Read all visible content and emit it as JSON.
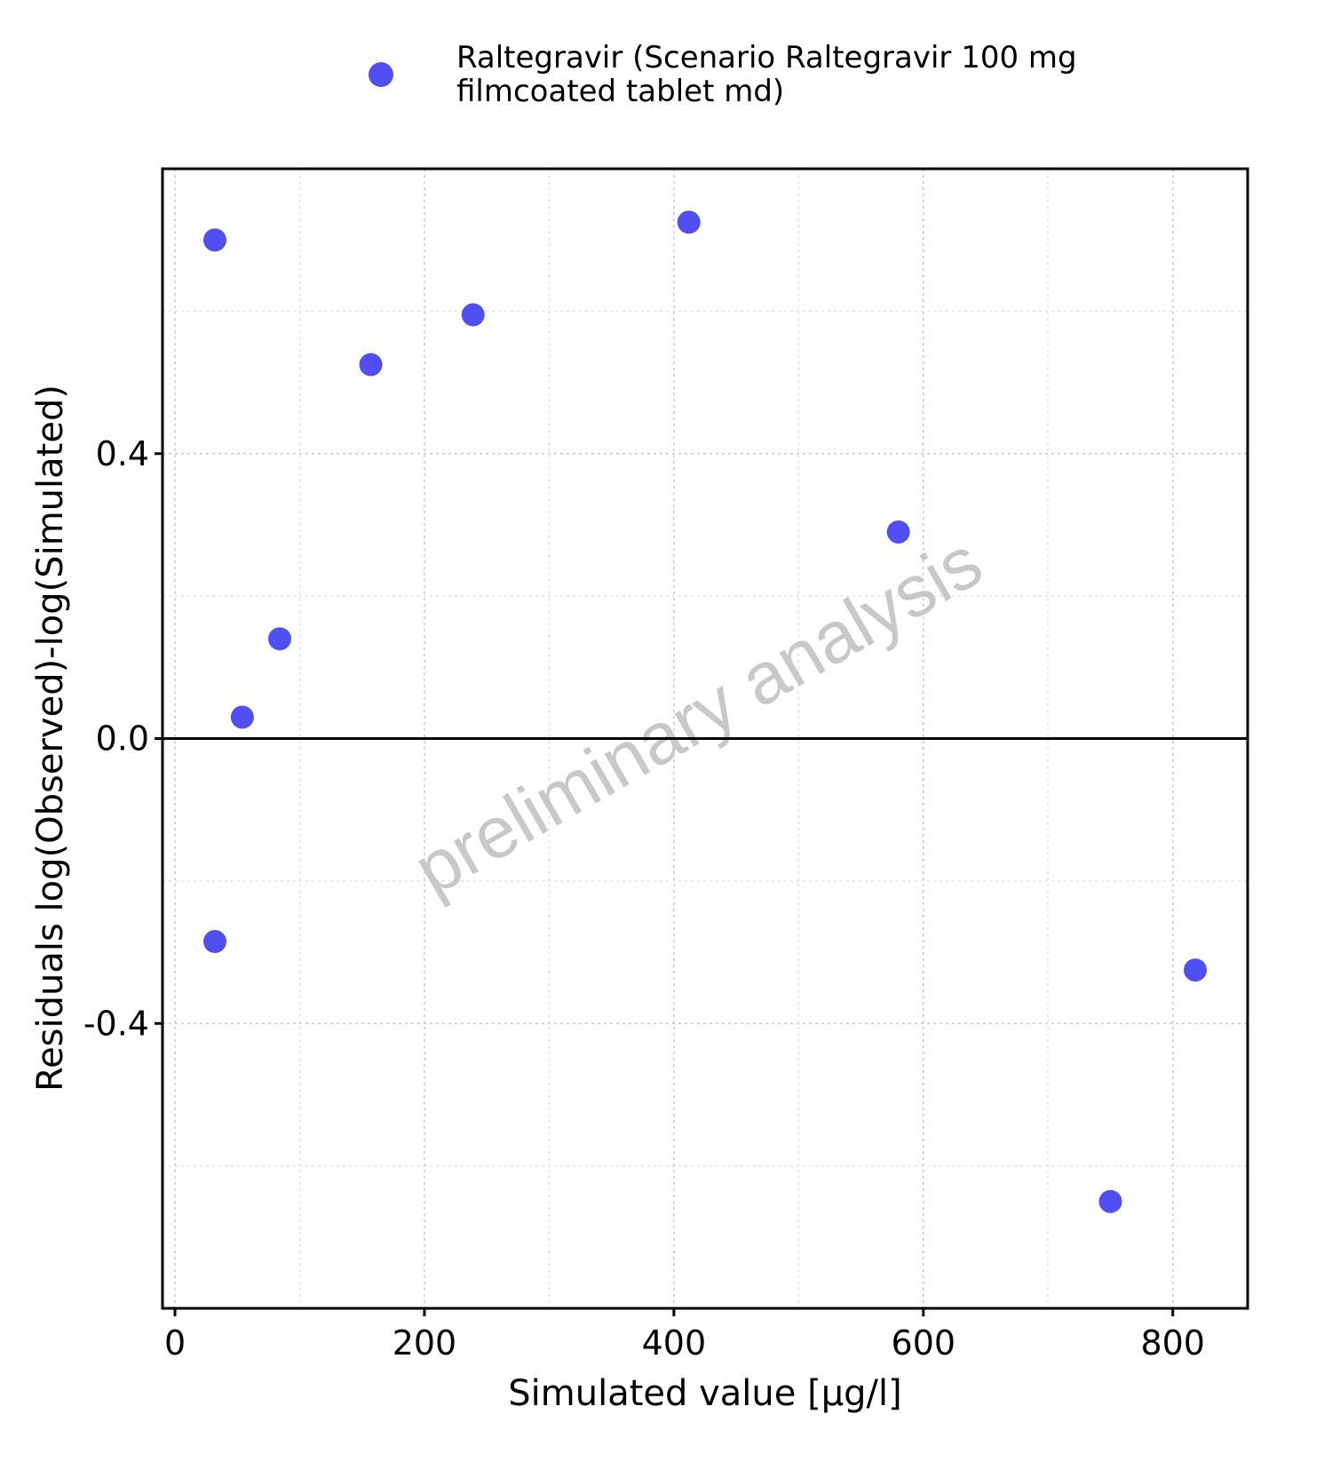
{
  "chart_data": {
    "type": "scatter",
    "xlabel": "Simulated value [µg/l]",
    "ylabel": "Residuals log(Observed)-log(Simulated)",
    "xlim": [
      -10,
      860
    ],
    "ylim": [
      -0.8,
      0.8
    ],
    "x_ticks": [
      {
        "value": 0,
        "label": "0"
      },
      {
        "value": 200,
        "label": "200"
      },
      {
        "value": 400,
        "label": "400"
      },
      {
        "value": 600,
        "label": "600"
      },
      {
        "value": 800,
        "label": "800"
      }
    ],
    "y_ticks": [
      {
        "value": -0.4,
        "label": "-0.4"
      },
      {
        "value": 0,
        "label": "0.0"
      },
      {
        "value": 0.4,
        "label": "0.4"
      }
    ],
    "x_minor_grid": [
      100,
      300,
      500,
      700
    ],
    "y_minor_grid": [
      -0.6,
      -0.2,
      0.2,
      0.6
    ],
    "grid": true,
    "reference_line_y": 0,
    "legend_position": "top",
    "series": [
      {
        "name": "Raltegravir (Scenario Raltegravir 100 mg filmcoated tablet md)",
        "legend_lines": [
          "Raltegravir (Scenario Raltegravir 100 mg",
          "filmcoated tablet md)"
        ],
        "color": "#4f4ff2",
        "points": [
          {
            "x": 32,
            "y": 0.7
          },
          {
            "x": 54,
            "y": 0.03
          },
          {
            "x": 84,
            "y": 0.14
          },
          {
            "x": 157,
            "y": 0.525
          },
          {
            "x": 239,
            "y": 0.595
          },
          {
            "x": 412,
            "y": 0.725
          },
          {
            "x": 580,
            "y": 0.29
          },
          {
            "x": 32,
            "y": -0.285
          },
          {
            "x": 750,
            "y": -0.65
          },
          {
            "x": 818,
            "y": -0.325
          }
        ]
      }
    ],
    "watermark": "preliminary analysis"
  }
}
